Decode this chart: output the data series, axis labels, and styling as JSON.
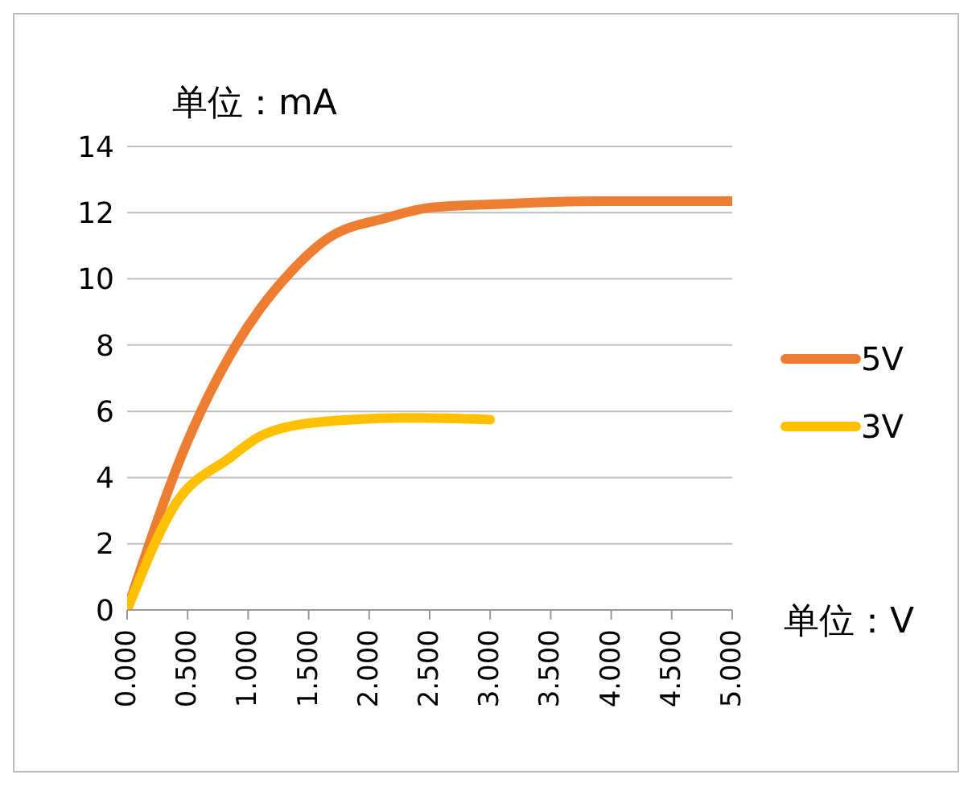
{
  "chart_data": {
    "type": "line",
    "ylabel": "单位：mA",
    "xlabel": "单位：V",
    "xlim": [
      0,
      5
    ],
    "xticks": [
      {
        "value": 0,
        "label": "0.000"
      },
      {
        "value": 0.5,
        "label": "0.500"
      },
      {
        "value": 1,
        "label": "1.000"
      },
      {
        "value": 1.5,
        "label": "1.500"
      },
      {
        "value": 2,
        "label": "2.000"
      },
      {
        "value": 2.5,
        "label": "2.500"
      },
      {
        "value": 3,
        "label": "3.000"
      },
      {
        "value": 3.5,
        "label": "3.500"
      },
      {
        "value": 4,
        "label": "4.000"
      },
      {
        "value": 4.5,
        "label": "4.500"
      },
      {
        "value": 5,
        "label": "5.000"
      }
    ],
    "ylim": [
      0,
      14
    ],
    "yticks": [
      0,
      2,
      4,
      6,
      8,
      10,
      12,
      14
    ],
    "grid": "y",
    "legend": "right",
    "marker": "none",
    "line_style": "solid",
    "series": [
      {
        "name": "5V",
        "color": "#ed7d31",
        "x": [
          0,
          0.5,
          0.9,
          1.1,
          1.35,
          1.65,
          2.15,
          2.5,
          3,
          3.9,
          5
        ],
        "values": [
          0,
          5.1,
          8,
          9.1,
          10.2,
          11.2,
          11.85,
          12.15,
          12.25,
          12.35,
          12.35
        ]
      },
      {
        "name": "3V",
        "color": "#ffc000",
        "x": [
          0,
          0.4,
          0.85,
          1.1,
          1.35,
          1.85,
          2.35,
          3
        ],
        "values": [
          0,
          3.2,
          4.6,
          5.25,
          5.55,
          5.75,
          5.8,
          5.75
        ]
      }
    ]
  }
}
